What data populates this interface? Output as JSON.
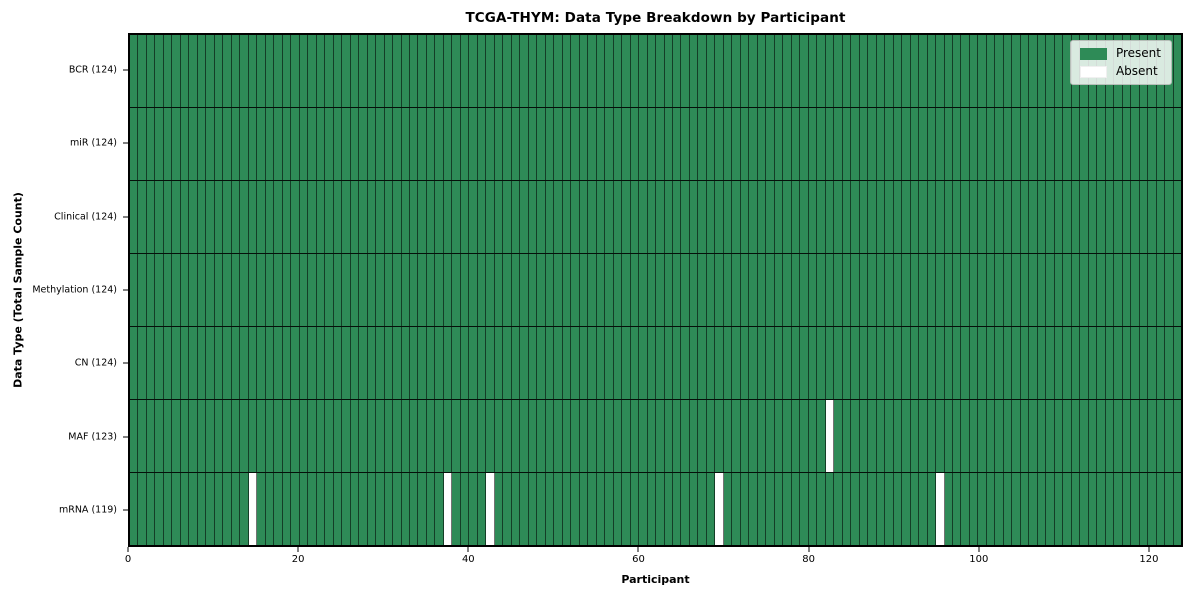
{
  "chart_data": {
    "type": "heatmap",
    "title": "TCGA-THYM: Data Type Breakdown by Participant",
    "xlabel": "Participant",
    "ylabel": "Data Type (Total Sample Count)",
    "n_participants": 124,
    "x_range": [
      0,
      124
    ],
    "x_ticks": [
      0,
      20,
      40,
      60,
      80,
      100,
      120
    ],
    "colors": {
      "present": "#2e8b57",
      "absent": "#ffffff"
    },
    "legend_position": "upper right",
    "legend_items": [
      {
        "label": "Present",
        "value": "present"
      },
      {
        "label": "Absent",
        "value": "absent"
      }
    ],
    "rows": [
      {
        "label": "BCR (124)",
        "data_type": "BCR",
        "present_count": 124,
        "absent_participants": []
      },
      {
        "label": "miR (124)",
        "data_type": "miR",
        "present_count": 124,
        "absent_participants": []
      },
      {
        "label": "Clinical (124)",
        "data_type": "Clinical",
        "present_count": 124,
        "absent_participants": []
      },
      {
        "label": "Methylation (124)",
        "data_type": "Methylation",
        "present_count": 124,
        "absent_participants": []
      },
      {
        "label": "CN (124)",
        "data_type": "CN",
        "present_count": 124,
        "absent_participants": []
      },
      {
        "label": "MAF (123)",
        "data_type": "MAF",
        "present_count": 123,
        "absent_participants": [
          82
        ]
      },
      {
        "label": "mRNA (119)",
        "data_type": "mRNA",
        "present_count": 119,
        "absent_participants": [
          14,
          37,
          42,
          69,
          95
        ]
      }
    ]
  }
}
